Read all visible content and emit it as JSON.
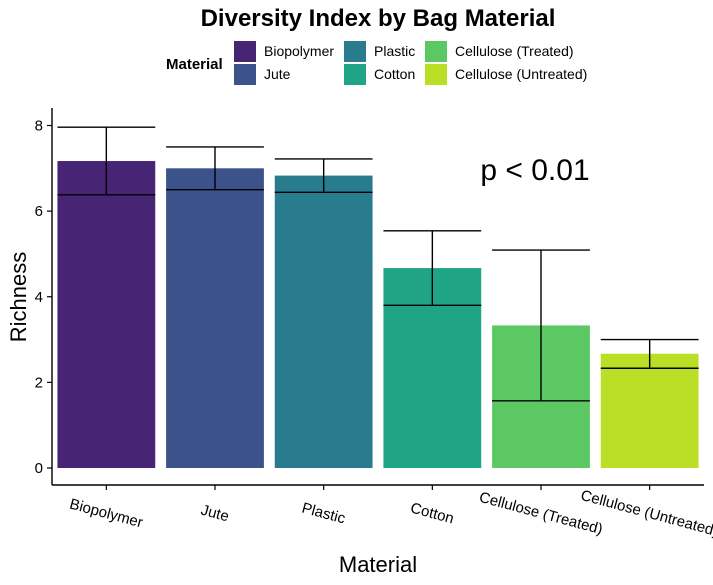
{
  "chart_data": {
    "type": "bar",
    "title": "Diversity Index by Bag Material",
    "xlabel": "Material",
    "ylabel": "Richness",
    "ylim": [
      0,
      8.3
    ],
    "yticks": [
      "0",
      "2",
      "4",
      "6",
      "8"
    ],
    "legend": {
      "title": "Material",
      "placement": "top"
    },
    "categories": [
      "Biopolymer",
      "Jute",
      "Plastic",
      "Cotton",
      "Cellulose (Treated)",
      "Cellulose (Untreated)"
    ],
    "values": [
      7.17,
      7.0,
      6.83,
      4.67,
      3.33,
      2.67
    ],
    "error_low": [
      6.38,
      6.5,
      6.44,
      3.8,
      1.57,
      2.33
    ],
    "error_high": [
      7.96,
      7.5,
      7.22,
      5.54,
      5.09,
      3.0
    ],
    "colors": [
      "#482474",
      "#3B528B",
      "#287C8E",
      "#20A486",
      "#5CC863",
      "#BBDF27"
    ],
    "annotation": "p < 0.01",
    "grid": false
  }
}
